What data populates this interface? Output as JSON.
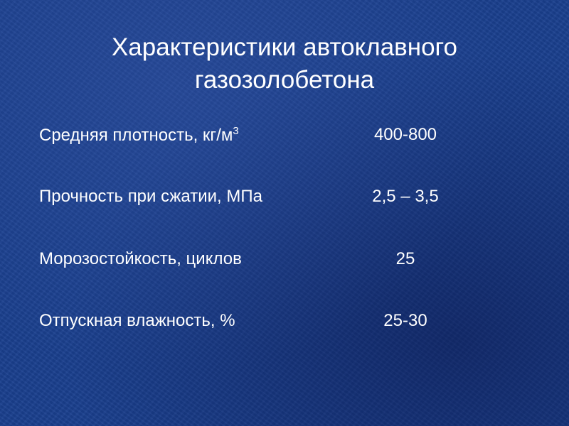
{
  "slide": {
    "title_line1": "Характеристики автоклавного",
    "title_line2": "газозолобетона",
    "rows": [
      {
        "label": "Средняя плотность, кг/м",
        "label_sup": "3",
        "value": "400-800"
      },
      {
        "label": "Прочность при сжатии, МПа",
        "value": "2,5 – 3,5"
      },
      {
        "label": "Морозостойкость, циклов",
        "value": "25"
      },
      {
        "label": "Отпускная влажность, %",
        "value": "25-30"
      }
    ]
  }
}
